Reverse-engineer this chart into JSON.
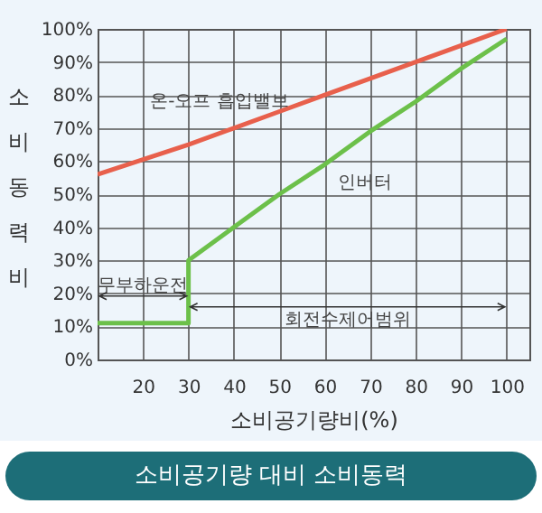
{
  "chart_data": {
    "type": "line",
    "title": "소비공기량 대비 소비동력",
    "xlabel": "소비공기량비(%)",
    "ylabel": "소비동력비",
    "xlim": [
      10,
      105
    ],
    "xticks": [
      20,
      30,
      40,
      50,
      60,
      70,
      80,
      90,
      100
    ],
    "ylim": [
      0,
      100
    ],
    "yticks": [
      {
        "value": 0,
        "label": "0%"
      },
      {
        "value": 10,
        "label": "10%"
      },
      {
        "value": 20,
        "label": "20%"
      },
      {
        "value": 30,
        "label": "30%"
      },
      {
        "value": 40,
        "label": "40%"
      },
      {
        "value": 50,
        "label": "50%"
      },
      {
        "value": 60,
        "label": "60%"
      },
      {
        "value": 70,
        "label": "70%"
      },
      {
        "value": 80,
        "label": "80%"
      },
      {
        "value": 90,
        "label": "90%"
      },
      {
        "value": 100,
        "label": "100%"
      }
    ],
    "grid": true,
    "marker": "none",
    "line_style": "solid",
    "series": [
      {
        "name": "온-오프 흡입밸브",
        "color": "#e8604c",
        "x": [
          10,
          20,
          30,
          40,
          50,
          60,
          70,
          80,
          90,
          100
        ],
        "values": [
          56,
          60.5,
          65,
          70,
          75,
          80,
          85,
          90,
          95,
          100
        ]
      },
      {
        "name": "인버터",
        "color": "#6cc04a",
        "x": [
          10,
          30,
          30,
          40,
          50,
          60,
          70,
          80,
          90,
          100
        ],
        "values": [
          11,
          11,
          30,
          40,
          50,
          59,
          69,
          78,
          88,
          97
        ]
      }
    ],
    "annotations": [
      "무부하운전",
      "회전수제어범위"
    ]
  }
}
